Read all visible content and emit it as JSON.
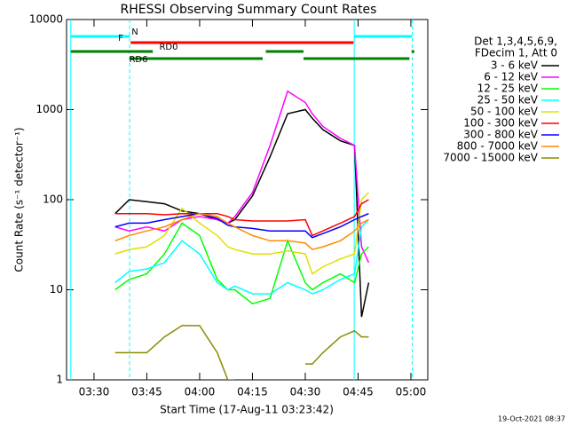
{
  "chart_data": {
    "type": "line",
    "title": "RHESSI Observing Summary Count Rates",
    "x_label": "Start Time (17-Aug-11 03:23:42)",
    "y_label": "Count Rate (s⁻¹ detector⁻¹)",
    "y_scale": "log",
    "xlim": [
      202.2,
      304.8
    ],
    "xticks": [
      {
        "value": 210,
        "label": "03:30"
      },
      {
        "value": 225,
        "label": "03:45"
      },
      {
        "value": 240,
        "label": "04:00"
      },
      {
        "value": 255,
        "label": "04:15"
      },
      {
        "value": 270,
        "label": "04:30"
      },
      {
        "value": 285,
        "label": "04:45"
      },
      {
        "value": 300,
        "label": "05:00"
      }
    ],
    "ylim": [
      1,
      10000
    ],
    "yticks": [
      1,
      10,
      100,
      1000,
      10000
    ],
    "legend_header": [
      "Det 1,3,4,5,6,9,",
      "FDecim 1, Att 0"
    ],
    "x": [
      216,
      220,
      225,
      230,
      235,
      240,
      245,
      248,
      250,
      255,
      260,
      265,
      270,
      272,
      275,
      280,
      284,
      286,
      288
    ],
    "series": [
      {
        "name": "3 - 6 keV",
        "color": "#000000",
        "values": [
          70,
          100,
          95,
          90,
          75,
          70,
          60,
          55,
          60,
          110,
          300,
          900,
          1000,
          800,
          600,
          450,
          400,
          5,
          12
        ]
      },
      {
        "name": "6 - 12 keV",
        "color": "#ff00ff",
        "values": [
          50,
          45,
          50,
          45,
          60,
          65,
          60,
          55,
          65,
          120,
          400,
          1600,
          1200,
          900,
          650,
          480,
          400,
          30,
          20
        ]
      },
      {
        "name": "12 - 25 keV",
        "color": "#00ff00",
        "values": [
          10,
          13,
          15,
          25,
          55,
          40,
          13,
          10,
          10,
          7,
          8,
          35,
          12,
          10,
          12,
          15,
          12,
          25,
          30
        ]
      },
      {
        "name": "25 - 50 keV",
        "color": "#00ffff",
        "values": [
          12,
          16,
          17,
          20,
          35,
          25,
          12,
          10,
          11,
          9,
          9,
          12,
          10,
          9,
          10,
          13,
          15,
          50,
          60
        ]
      },
      {
        "name": "50 - 100 keV",
        "color": "#e0e000",
        "values": [
          25,
          28,
          30,
          40,
          80,
          55,
          40,
          30,
          28,
          25,
          25,
          27,
          25,
          15,
          18,
          22,
          25,
          100,
          120
        ]
      },
      {
        "name": "100 - 300 keV",
        "color": "#ff0000",
        "values": [
          70,
          70,
          70,
          68,
          70,
          70,
          70,
          65,
          60,
          58,
          58,
          58,
          60,
          40,
          45,
          55,
          65,
          90,
          100
        ]
      },
      {
        "name": "300 - 800 keV",
        "color": "#0000ff",
        "values": [
          50,
          55,
          55,
          60,
          65,
          70,
          62,
          52,
          50,
          48,
          45,
          45,
          45,
          38,
          42,
          50,
          60,
          65,
          70
        ]
      },
      {
        "name": "800 - 7000 keV",
        "color": "#ff8c00",
        "values": [
          35,
          40,
          45,
          50,
          60,
          70,
          65,
          55,
          50,
          40,
          35,
          35,
          33,
          28,
          30,
          35,
          45,
          55,
          60
        ]
      },
      {
        "name": "7000 - 15000 keV",
        "color": "#8b8b00",
        "values": [
          2,
          2,
          2,
          3,
          4,
          4,
          2,
          1,
          1,
          null,
          null,
          null,
          1.5,
          1.5,
          2,
          3,
          3.5,
          3,
          3
        ]
      }
    ],
    "intervals": [
      {
        "label": "N",
        "color": "#00ffff",
        "segments": [
          [
            203.4,
            220.1
          ],
          [
            283.9,
            300.4
          ]
        ]
      },
      {
        "label": "F",
        "color": "#ff0000",
        "segments": [
          [
            220.4,
            283.7
          ]
        ]
      },
      {
        "label": "RD0",
        "color": "#008000",
        "segments": [
          [
            203.4,
            226.7
          ],
          [
            258.8,
            269.5
          ],
          [
            300.2,
            301
          ]
        ]
      },
      {
        "label": "RD6",
        "color": "#008000",
        "segments": [
          [
            220.1,
            257.9
          ],
          [
            269.5,
            299.6
          ]
        ]
      }
    ],
    "timestamp": "19-Oct-2021 08:37"
  }
}
